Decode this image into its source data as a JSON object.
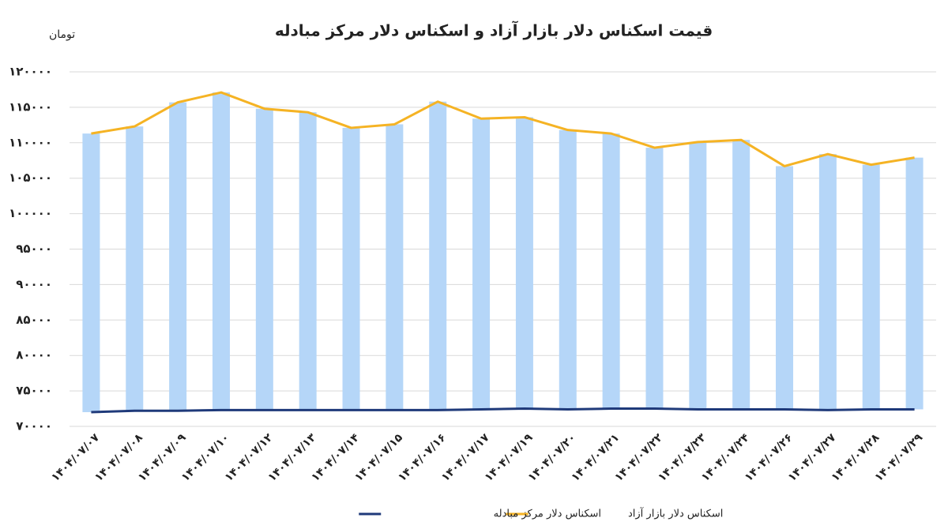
{
  "chart_data": {
    "type": "bar-line",
    "title": "قیمت اسکناس دلار بازار آزاد و اسکناس دلار مرکز مبادله",
    "y_label": "تومان",
    "categories": [
      "۱۴۰۴/۰۷/۰۷",
      "۱۴۰۴/۰۷/۰۸",
      "۱۴۰۴/۰۷/۰۹",
      "۱۴۰۴/۰۷/۱۰",
      "۱۴۰۴/۰۷/۱۲",
      "۱۴۰۴/۰۷/۱۳",
      "۱۴۰۴/۰۷/۱۴",
      "۱۴۰۴/۰۷/۱۵",
      "۱۴۰۴/۰۷/۱۶",
      "۱۴۰۴/۰۷/۱۷",
      "۱۴۰۴/۰۷/۱۹",
      "۱۴۰۴/۰۷/۲۰",
      "۱۴۰۴/۰۷/۲۱",
      "۱۴۰۴/۰۷/۲۲",
      "۱۴۰۴/۰۷/۲۳",
      "۱۴۰۴/۰۷/۲۴",
      "۱۴۰۴/۰۷/۲۶",
      "۱۴۰۴/۰۷/۲۷",
      "۱۴۰۴/۰۷/۲۸",
      "۱۴۰۴/۰۷/۲۹"
    ],
    "series": [
      {
        "name": "اسکناس دلار مرکز مبادله",
        "color": "#1f3a7a",
        "values": [
          72000,
          72200,
          72200,
          72300,
          72300,
          72300,
          72300,
          72300,
          72300,
          72400,
          72500,
          72400,
          72500,
          72500,
          72400,
          72400,
          72400,
          72300,
          72400,
          72400
        ]
      },
      {
        "name": "اسکناس دلار بازار آزاد",
        "color": "#f5b324",
        "bar_color": "#b5d6f8",
        "values": [
          111300,
          112300,
          115700,
          117100,
          114800,
          114300,
          112100,
          112600,
          115800,
          113400,
          113600,
          111800,
          111300,
          109300,
          110100,
          110400,
          106700,
          108400,
          106900,
          107900
        ]
      }
    ],
    "ylim": [
      70000,
      120000
    ],
    "yticks": [
      {
        "value": 70000,
        "label": "۷۰۰۰۰"
      },
      {
        "value": 75000,
        "label": "۷۵۰۰۰"
      },
      {
        "value": 80000,
        "label": "۸۰۰۰۰"
      },
      {
        "value": 85000,
        "label": "۸۵۰۰۰"
      },
      {
        "value": 90000,
        "label": "۹۰۰۰۰"
      },
      {
        "value": 95000,
        "label": "۹۵۰۰۰"
      },
      {
        "value": 100000,
        "label": "۱۰۰۰۰۰"
      },
      {
        "value": 105000,
        "label": "۱۰۵۰۰۰"
      },
      {
        "value": 110000,
        "label": "۱۱۰۰۰۰"
      },
      {
        "value": 115000,
        "label": "۱۱۵۰۰۰"
      },
      {
        "value": 120000,
        "label": "۱۲۰۰۰۰"
      }
    ],
    "grid": true
  }
}
